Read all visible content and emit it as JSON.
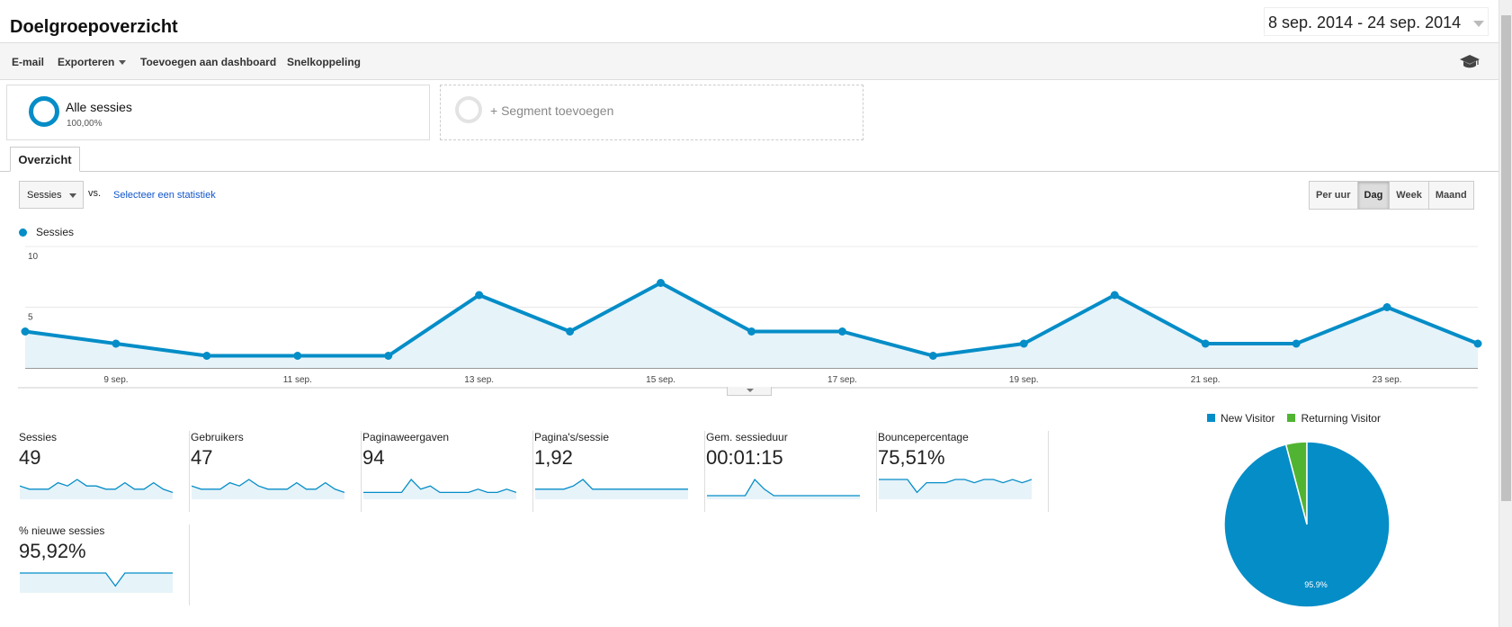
{
  "header": {
    "title": "Doelgroepoverzicht",
    "date_range": "8 sep. 2014 - 24 sep. 2014"
  },
  "toolbar": {
    "email": "E-mail",
    "export": "Exporteren",
    "add_dashboard": "Toevoegen aan dashboard",
    "shortcut": "Snelkoppeling"
  },
  "segments": {
    "all_name": "Alle sessies",
    "all_pct": "100,00%",
    "add_label": "+ Segment toevoegen"
  },
  "tabs": {
    "overview": "Overzicht"
  },
  "controls": {
    "metric": "Sessies",
    "vs": "vs.",
    "select_stat": "Selecteer een statistiek",
    "periods": [
      "Per uur",
      "Dag",
      "Week",
      "Maand"
    ],
    "active_period": "Dag"
  },
  "colors": {
    "accent": "#058dc7",
    "returning": "#50b432",
    "fill": "#e6f3f9"
  },
  "chart_data": [
    {
      "type": "area",
      "legend": "Sessies",
      "ylim": [
        0,
        10
      ],
      "y_ticks": [
        "10",
        "5"
      ],
      "x_tick_labels": [
        "9 sep.",
        "11 sep.",
        "13 sep.",
        "15 sep.",
        "17 sep.",
        "19 sep.",
        "21 sep.",
        "23 sep."
      ],
      "series": [
        {
          "name": "Sessies",
          "values": [
            3,
            2,
            1,
            1,
            1,
            6,
            3,
            7,
            3,
            3,
            1,
            2,
            6,
            2,
            2,
            5,
            2
          ]
        }
      ]
    },
    {
      "type": "pie",
      "legend": [
        "New Visitor",
        "Returning Visitor"
      ],
      "values": [
        95.9,
        4.1
      ],
      "slice_label": "95.9%"
    }
  ],
  "metrics": [
    {
      "label": "Sessies",
      "value": "49",
      "spark": [
        3,
        2,
        2,
        2,
        4,
        3,
        5,
        3,
        3,
        2,
        2,
        4,
        2,
        2,
        4,
        2,
        1
      ]
    },
    {
      "label": "Gebruikers",
      "value": "47",
      "spark": [
        3,
        2,
        2,
        2,
        4,
        3,
        5,
        3,
        2,
        2,
        2,
        4,
        2,
        2,
        4,
        2,
        1
      ]
    },
    {
      "label": "Paginaweergaven",
      "value": "94",
      "spark": [
        1,
        1,
        1,
        1,
        1,
        5,
        2,
        3,
        1,
        1,
        1,
        1,
        2,
        1,
        1,
        2,
        1
      ]
    },
    {
      "label": "Pagina's/sessie",
      "value": "1,92",
      "spark": [
        2,
        2,
        2,
        2,
        3,
        5,
        2,
        2,
        2,
        2,
        2,
        2,
        2,
        2,
        2,
        2,
        2
      ]
    },
    {
      "label": "Gem. sessieduur",
      "value": "00:01:15",
      "spark": [
        0,
        0,
        0,
        0,
        0,
        5,
        2,
        0,
        0,
        0,
        0,
        0,
        0,
        0,
        0,
        0,
        0
      ]
    },
    {
      "label": "Bouncepercentage",
      "value": "75,51%",
      "spark": [
        5,
        5,
        5,
        5,
        1,
        4,
        4,
        4,
        5,
        5,
        4,
        5,
        5,
        4,
        5,
        4,
        5
      ]
    },
    {
      "label": "% nieuwe sessies",
      "value": "95,92%",
      "spark": [
        5,
        5,
        5,
        5,
        5,
        5,
        5,
        5,
        5,
        5,
        1,
        5,
        5,
        5,
        5,
        5,
        5
      ]
    }
  ]
}
